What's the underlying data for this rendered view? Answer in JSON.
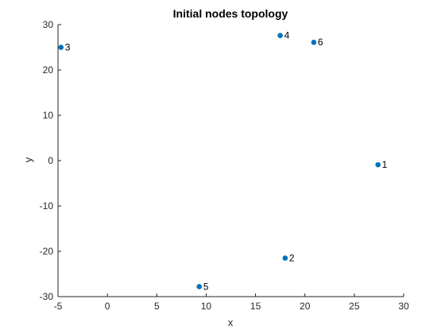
{
  "chart_data": {
    "type": "scatter",
    "title": "Initial nodes topology",
    "xlabel": "x",
    "ylabel": "y",
    "xlim": [
      -5,
      30
    ],
    "ylim": [
      -30,
      30
    ],
    "xticks": [
      -5,
      0,
      5,
      10,
      15,
      20,
      25,
      30
    ],
    "yticks": [
      -30,
      -20,
      -10,
      0,
      10,
      20,
      30
    ],
    "grid": false,
    "marker_color": "#0072BD",
    "points": [
      {
        "label": "1",
        "x": 27.4,
        "y": -0.9
      },
      {
        "label": "2",
        "x": 18.0,
        "y": -21.5
      },
      {
        "label": "3",
        "x": -4.7,
        "y": 25.0
      },
      {
        "label": "4",
        "x": 17.5,
        "y": 27.6
      },
      {
        "label": "5",
        "x": 9.3,
        "y": -27.8
      },
      {
        "label": "6",
        "x": 20.9,
        "y": 26.1
      }
    ]
  }
}
